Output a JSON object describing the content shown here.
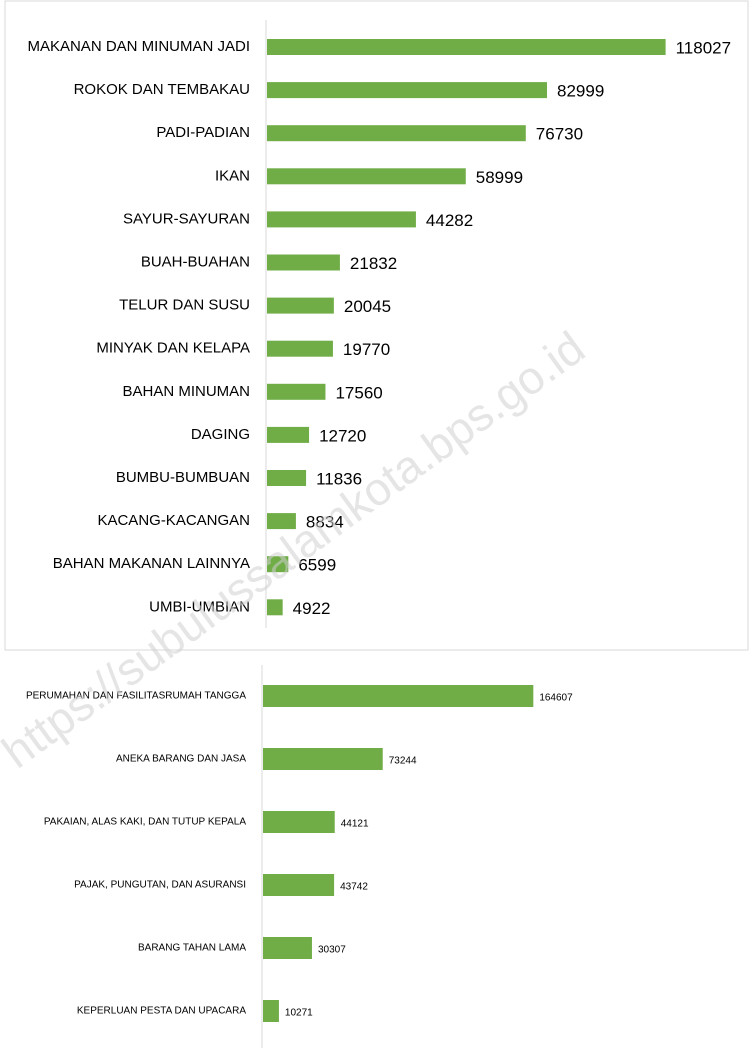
{
  "watermark": "https://subulussalamkota.bps.go.id",
  "chart_data": [
    {
      "type": "bar",
      "orientation": "horizontal",
      "color": "#70ad47",
      "xlim": [
        0,
        140000
      ],
      "categories": [
        "MAKANAN DAN MINUMAN JADI",
        "ROKOK DAN TEMBAKAU",
        "PADI-PADIAN",
        "IKAN",
        "SAYUR-SAYURAN",
        "BUAH-BUAHAN",
        "TELUR DAN SUSU",
        "MINYAK DAN KELAPA",
        "BAHAN MINUMAN",
        "DAGING",
        "BUMBU-BUMBUAN",
        "KACANG-KACANGAN",
        "BAHAN MAKANAN LAINNYA",
        "UMBI-UMBIAN"
      ],
      "values": [
        118027,
        82999,
        76730,
        58999,
        44282,
        21832,
        20045,
        19770,
        17560,
        12720,
        11836,
        8834,
        6599,
        4922
      ]
    },
    {
      "type": "bar",
      "orientation": "horizontal",
      "color": "#70ad47",
      "xlim": [
        0,
        290000
      ],
      "categories": [
        "PERUMAHAN DAN FASILITASRUMAH TANGGA",
        "ANEKA BARANG DAN JASA",
        "PAKAIAN, ALAS KAKI, DAN TUTUP KEPALA",
        "PAJAK, PUNGUTAN, DAN ASURANSI",
        "BARANG TAHAN LAMA",
        "KEPERLUAN PESTA DAN UPACARA"
      ],
      "values": [
        164607,
        73244,
        44121,
        43742,
        30307,
        10271
      ]
    }
  ]
}
